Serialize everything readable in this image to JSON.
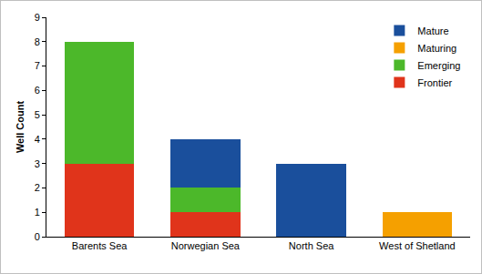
{
  "chart_data": {
    "type": "bar",
    "stacked": true,
    "y_label": "Well Count",
    "categories": [
      "Barents Sea",
      "Norwegian Sea",
      "North Sea",
      "West of Shetland"
    ],
    "series": [
      {
        "name": "Frontier",
        "color": "#e0341b",
        "values": [
          3,
          1,
          0,
          0
        ]
      },
      {
        "name": "Emerging",
        "color": "#4cb82a",
        "values": [
          5,
          1,
          0,
          0
        ]
      },
      {
        "name": "Maturing",
        "color": "#f5a000",
        "values": [
          0,
          0,
          0,
          1
        ]
      },
      {
        "name": "Mature",
        "color": "#1a4f9c",
        "values": [
          0,
          2,
          3,
          0
        ]
      }
    ],
    "ylim": [
      0,
      9
    ],
    "yticks": [
      0,
      1,
      2,
      3,
      4,
      5,
      6,
      7,
      8,
      9
    ],
    "grid": false,
    "legend": "top-right"
  }
}
